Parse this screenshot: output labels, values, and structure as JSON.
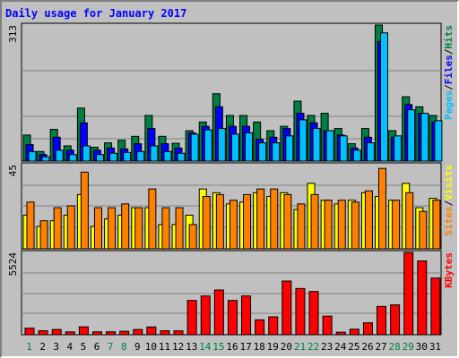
{
  "chart_data": {
    "type": "bar",
    "title": "Daily usage for January 2017",
    "categories": [
      "1",
      "2",
      "3",
      "4",
      "5",
      "6",
      "7",
      "8",
      "9",
      "10",
      "11",
      "12",
      "13",
      "14",
      "15",
      "16",
      "17",
      "18",
      "19",
      "20",
      "21",
      "22",
      "23",
      "24",
      "25",
      "26",
      "27",
      "28",
      "29",
      "30",
      "31"
    ],
    "weekend_days": [
      "1",
      "7",
      "8",
      "14",
      "15",
      "21",
      "22",
      "28",
      "29"
    ],
    "colors": {
      "hits": "#008040",
      "files": "#0000ff",
      "pages": "#00c0ff",
      "visits": "#ffff00",
      "sites": "#ff8000",
      "kbytes": "#ff0000",
      "title": "#0000ff",
      "weekend_label": "#008040",
      "weekday_label": "#000000"
    },
    "panels": [
      {
        "id": "hits-panel",
        "ymax_label": "313",
        "ymax": 313,
        "legend": [
          "Pages",
          "/",
          "Files",
          "/",
          "Hits"
        ],
        "legend_colors": [
          "#00c0ff",
          "#000000",
          "#0000ff",
          "#000000",
          "#008040"
        ],
        "series": [
          {
            "name": "Hits",
            "values": [
              60,
              22,
              73,
              35,
              122,
              32,
              42,
              48,
              57,
              105,
              57,
              41,
              70,
              90,
              155,
              105,
              105,
              90,
              70,
              80,
              138,
              105,
              110,
              75,
              40,
              75,
              313,
              70,
              148,
              125,
              105
            ]
          },
          {
            "name": "Files",
            "values": [
              38,
              15,
              55,
              25,
              88,
              25,
              30,
              28,
              40,
              75,
              40,
              30,
              65,
              80,
              125,
              80,
              80,
              50,
              55,
              75,
              110,
              88,
              70,
              60,
              30,
              55,
              275,
              55,
              130,
              110,
              90
            ]
          },
          {
            "name": "Pages",
            "values": [
              22,
              10,
              25,
              15,
              35,
              15,
              18,
              20,
              22,
              35,
              22,
              18,
              62,
              72,
              75,
              62,
              65,
              42,
              42,
              58,
              95,
              75,
              70,
              58,
              25,
              42,
              295,
              58,
              118,
              110,
              93
            ]
          }
        ]
      },
      {
        "id": "visits-panel",
        "ymax_label": "45",
        "ymax": 45,
        "legend": [
          "Sites",
          "/",
          "Visits"
        ],
        "legend_colors": [
          "#ff8000",
          "#000000",
          "#ffff00"
        ],
        "series": [
          {
            "name": "Visits",
            "values": [
              18,
              12,
              15,
              18,
              29,
              12,
              16,
              18,
              22,
              22,
              13,
              13,
              18,
              32,
              30,
              24,
              25,
              30,
              28,
              30,
              21,
              35,
              26,
              24,
              26,
              30,
              28,
              26,
              35,
              22,
              27
            ]
          },
          {
            "name": "Sites",
            "values": [
              25,
              15,
              22,
              23,
              41,
              22,
              22,
              24,
              22,
              32,
              22,
              22,
              13,
              28,
              29,
              26,
              29,
              32,
              32,
              29,
              24,
              29,
              26,
              26,
              25,
              31,
              43,
              26,
              30,
              20,
              26
            ]
          }
        ]
      },
      {
        "id": "kbytes-panel",
        "ymax_label": "5524",
        "ymax": 5524,
        "legend": [
          "KBytes"
        ],
        "legend_colors": [
          "#ff0000"
        ],
        "series": [
          {
            "name": "KBytes",
            "values": [
              440,
              265,
              350,
              190,
              530,
              195,
              195,
              230,
              350,
              520,
              265,
              260,
              2300,
              2600,
              3000,
              2300,
              2600,
              1000,
              1200,
              3600,
              3100,
              2900,
              1250,
              170,
              370,
              800,
              1900,
              2000,
              5524,
              4950,
              3800
            ]
          }
        ]
      }
    ]
  }
}
